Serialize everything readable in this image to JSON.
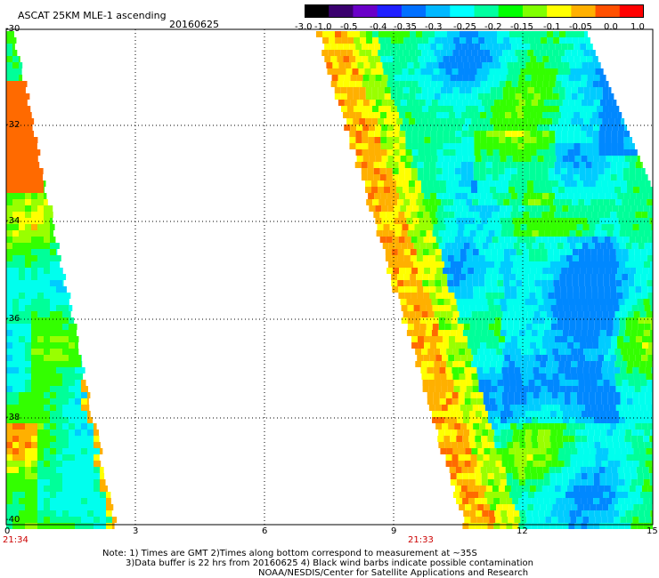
{
  "title": "ASCAT 25KM MLE-1 ascending",
  "date": "20160625",
  "colorbar": {
    "labels": [
      "-3.0",
      "-1.0",
      "-0.5",
      "-0.4",
      "-0.35",
      "-0.3",
      "-0.25",
      "-0.2",
      "-0.15",
      "-0.1",
      "-0.05",
      "0.0",
      "1.0"
    ],
    "colors": [
      "#000000",
      "#3a006e",
      "#6a00c8",
      "#2020ff",
      "#0070ff",
      "#00b8ff",
      "#00ffff",
      "#00ffa0",
      "#00ff00",
      "#80ff00",
      "#ffff00",
      "#ffb000",
      "#ff5000",
      "#ff0000"
    ]
  },
  "axes": {
    "y_labels": [
      "-30",
      "-32",
      "-34",
      "-36",
      "-38",
      "-40"
    ],
    "x_labels": [
      "0",
      "3",
      "6",
      "9",
      "12",
      "15"
    ]
  },
  "time_labels": [
    "21:34",
    "21:33"
  ],
  "notes": {
    "line1": "Note: 1) Times are GMT 2)Times along bottom correspond to measurement at ~35S",
    "line2": "3)Data buffer is 22 hrs from 20160625 4) Black wind barbs indicate possible contamination",
    "line3": "NOAA/NESDIS/Center for Satellite Applications and Research"
  }
}
